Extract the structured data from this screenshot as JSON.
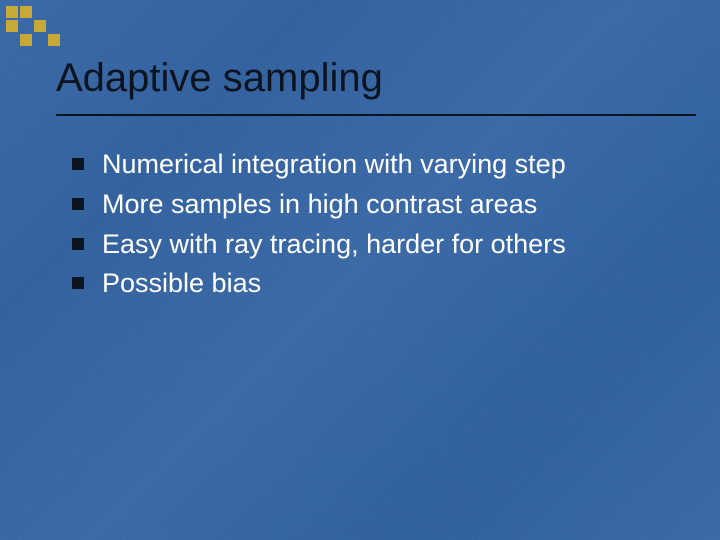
{
  "slide": {
    "title": "Adaptive sampling",
    "title_color": "#0c1420",
    "title_fontsize": 40,
    "divider_color": "#0c1420",
    "background_color": "#3763a1",
    "bullet_marker_color": "#0c1420",
    "bullet_text_color": "#ffffff",
    "bullet_fontsize": 27,
    "bullets": [
      "Numerical integration with varying step",
      "More samples in high contrast areas",
      "Easy with ray tracing, harder for others",
      "Possible bias"
    ],
    "decoration": {
      "grid_cols": 4,
      "grid_rows": 3,
      "square_size": 12,
      "colors": [
        "#c7a93a",
        "#c7a93a",
        "transparent",
        "transparent",
        "#c7a93a",
        "transparent",
        "#c7a93a",
        "transparent",
        "transparent",
        "#c7a93a",
        "transparent",
        "#c7a93a"
      ]
    }
  }
}
